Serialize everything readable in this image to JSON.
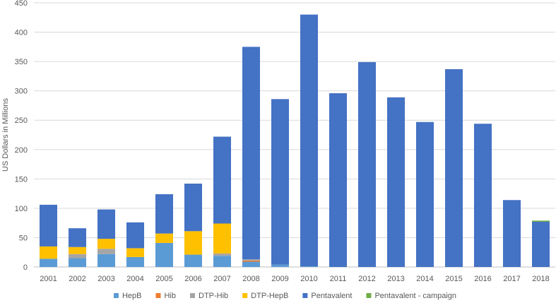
{
  "chart_data": {
    "type": "bar",
    "stacked": true,
    "title": "",
    "xlabel": "",
    "ylabel": "US Dollars in Millions",
    "ylim": [
      0,
      450
    ],
    "yticks": [
      0,
      50,
      100,
      150,
      200,
      250,
      300,
      350,
      400,
      450
    ],
    "grid": true,
    "legend_position": "bottom",
    "categories": [
      "2001",
      "2002",
      "2003",
      "2004",
      "2005",
      "2006",
      "2007",
      "2008",
      "2009",
      "2010",
      "2011",
      "2012",
      "2013",
      "2014",
      "2015",
      "2016",
      "2017",
      "2018"
    ],
    "series": [
      {
        "name": "HepB",
        "color": "#5b9bd5",
        "values": [
          14,
          15,
          22,
          17,
          41,
          21,
          19,
          9,
          4,
          1,
          0,
          0,
          0,
          0,
          0,
          0,
          0,
          0
        ]
      },
      {
        "name": "Hib",
        "color": "#ed7d31",
        "values": [
          0,
          0,
          0,
          0,
          0,
          0,
          0,
          2,
          0,
          0,
          0,
          0,
          0,
          0,
          0,
          0,
          0,
          0
        ]
      },
      {
        "name": "DTP-Hib",
        "color": "#a5a5a5",
        "values": [
          0,
          7,
          9,
          0,
          0,
          0,
          4,
          2,
          0,
          0,
          0,
          0,
          0,
          0,
          0,
          0,
          0,
          0
        ]
      },
      {
        "name": "DTP-HepB",
        "color": "#ffc000",
        "values": [
          21,
          12,
          17,
          15,
          16,
          40,
          51,
          0,
          0,
          0,
          0,
          0,
          0,
          0,
          0,
          0,
          0,
          0
        ]
      },
      {
        "name": "Pentavalent",
        "color": "#4472c4",
        "values": [
          71,
          32,
          50,
          44,
          67,
          81,
          148,
          362,
          282,
          429,
          296,
          349,
          289,
          247,
          337,
          244,
          114,
          77
        ]
      },
      {
        "name": "Pentavalent - campaign",
        "color": "#70ad47",
        "values": [
          0,
          0,
          0,
          0,
          0,
          0,
          0,
          0,
          0,
          0,
          0,
          0,
          0,
          0,
          0,
          0,
          0,
          2
        ]
      }
    ]
  }
}
